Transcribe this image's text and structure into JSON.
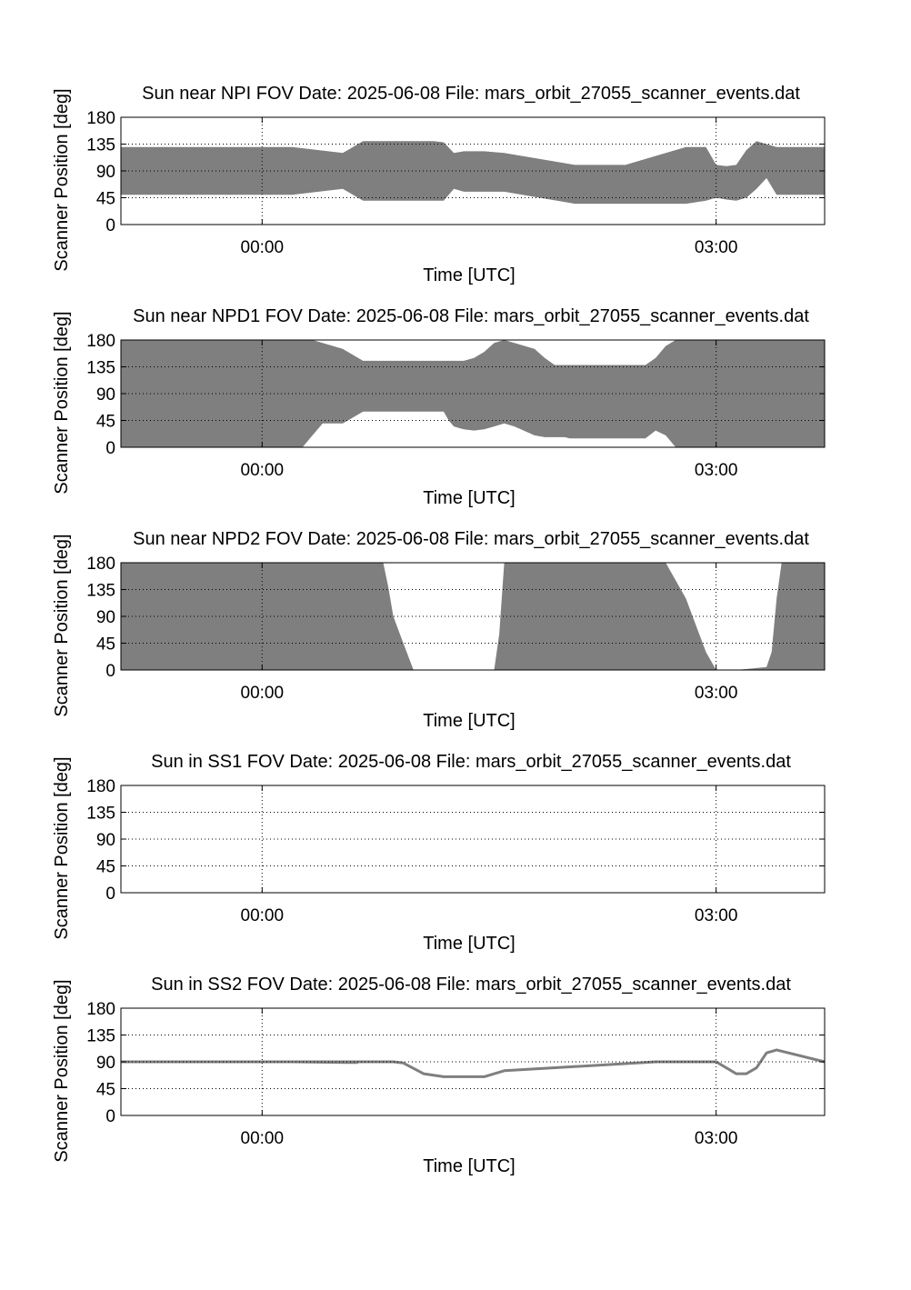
{
  "chart_data": [
    {
      "type": "area",
      "title": "Sun near NPI FOV   Date: 2025-06-08   File: mars_orbit_27055_scanner_events.dat",
      "xlabel": "Time [UTC]",
      "ylabel": "Scanner Position [deg]",
      "xlim": [
        -0.933,
        3.717
      ],
      "ylim": [
        0,
        180
      ],
      "xticks": [
        0,
        3
      ],
      "xtick_labels": [
        "00:00",
        "03:00"
      ],
      "yticks": [
        0,
        45,
        90,
        135,
        180
      ],
      "ytick_labels": [
        "0",
        "45",
        "90",
        "135",
        "180"
      ],
      "grid": true,
      "fill_color": "#7f7f7f",
      "bands": [
        {
          "x": [
            -0.933,
            0.2,
            0.533,
            0.667,
            0.8,
            1,
            1.133,
            1.2,
            1.267,
            1.333,
            1.467,
            1.6,
            2.067,
            2.2,
            2.4,
            2.8,
            2.933,
            3,
            3.067,
            3.133,
            3.2,
            3.267,
            3.333,
            3.4,
            3.717
          ],
          "low": [
            50,
            50,
            60,
            40,
            40,
            40,
            40,
            40,
            60,
            55,
            55,
            55,
            35,
            35,
            35,
            35,
            40,
            45,
            42,
            40,
            45,
            60,
            78,
            50,
            50
          ],
          "high": [
            130,
            130,
            120,
            140,
            140,
            140,
            140,
            138,
            120,
            123,
            123,
            120,
            100,
            100,
            100,
            130,
            130,
            100,
            98,
            100,
            125,
            140,
            135,
            130,
            130
          ]
        }
      ]
    },
    {
      "type": "area",
      "title": "Sun near NPD1 FOV   Date: 2025-06-08   File: mars_orbit_27055_scanner_events.dat",
      "xlabel": "Time [UTC]",
      "ylabel": "Scanner Position [deg]",
      "xlim": [
        -0.933,
        3.717
      ],
      "ylim": [
        0,
        180
      ],
      "xticks": [
        0,
        3
      ],
      "xtick_labels": [
        "00:00",
        "03:00"
      ],
      "yticks": [
        0,
        45,
        90,
        135,
        180
      ],
      "ytick_labels": [
        "0",
        "45",
        "90",
        "135",
        "180"
      ],
      "grid": true,
      "fill_color": "#7f7f7f",
      "bands": [
        {
          "x": [
            -0.933,
            0.033,
            0.1,
            0.133,
            0.2,
            0.267,
            0.333,
            0.4,
            0.533,
            0.667,
            0.8,
            1,
            1.133,
            1.2,
            1.233,
            1.267,
            1.333,
            1.4,
            1.467,
            1.533,
            1.6,
            1.667,
            1.8,
            1.867,
            1.933,
            2,
            2.033,
            2.067,
            2.133,
            2.2,
            2.267,
            2.333,
            2.4,
            2.533,
            2.6,
            2.667,
            2.733,
            2.8,
            2.867,
            2.933,
            3,
            3.067,
            3.1,
            3.133,
            3.2,
            3.267,
            3.333,
            3.4,
            3.467,
            3.533,
            3.6,
            3.717
          ],
          "low": [
            0,
            0,
            0,
            0,
            0,
            0,
            20,
            40,
            40,
            60,
            60,
            60,
            60,
            60,
            45,
            35,
            30,
            28,
            30,
            35,
            40,
            35,
            20,
            17,
            17,
            17,
            15,
            15,
            15,
            15,
            15,
            15,
            15,
            15,
            28,
            20,
            0,
            0,
            0,
            0,
            0,
            0,
            0,
            0,
            0,
            0,
            0,
            0,
            0,
            0,
            0,
            0
          ],
          "high": [
            180,
            180,
            180,
            180,
            180,
            180,
            180,
            175,
            165,
            145,
            145,
            145,
            145,
            145,
            145,
            145,
            145,
            150,
            160,
            175,
            180,
            175,
            165,
            150,
            138,
            138,
            138,
            138,
            138,
            138,
            138,
            138,
            138,
            138,
            150,
            170,
            180,
            180,
            180,
            180,
            180,
            180,
            180,
            180,
            180,
            180,
            180,
            180,
            180,
            180,
            180,
            180
          ]
        }
      ]
    },
    {
      "type": "area",
      "title": "Sun near NPD2 FOV   Date: 2025-06-08   File: mars_orbit_27055_scanner_events.dat",
      "xlabel": "Time [UTC]",
      "ylabel": "Scanner Position [deg]",
      "xlim": [
        -0.933,
        3.717
      ],
      "ylim": [
        0,
        180
      ],
      "xticks": [
        0,
        3
      ],
      "xtick_labels": [
        "00:00",
        "03:00"
      ],
      "yticks": [
        0,
        45,
        90,
        135,
        180
      ],
      "ytick_labels": [
        "0",
        "45",
        "90",
        "135",
        "180"
      ],
      "grid": true,
      "fill_color": "#7f7f7f",
      "bands": [
        {
          "x": [
            -0.933,
            0.8,
            0.833,
            0.867,
            0.933,
            1,
            1.067,
            1.1,
            1.133,
            1.2,
            1.233
          ],
          "low": [
            0,
            0,
            0,
            0,
            0,
            0,
            0,
            0,
            0,
            0,
            0
          ],
          "high": [
            180,
            180,
            140,
            90,
            45,
            0,
            0,
            0,
            0,
            0,
            0
          ]
        },
        {
          "x": [
            0.5,
            0.533,
            0.6,
            0.667,
            0.733,
            0.767
          ],
          "low": [
            0,
            0,
            0,
            0,
            0,
            0
          ],
          "high": [
            0,
            115,
            110,
            75,
            20,
            0
          ]
        },
        {
          "x": [
            1.533,
            1.567,
            1.6,
            1.667,
            2.667,
            2.8,
            2.933,
            3
          ],
          "low": [
            0,
            0,
            0,
            0,
            0,
            0,
            0,
            0
          ],
          "high": [
            0,
            60,
            180,
            180,
            180,
            120,
            30,
            0
          ]
        },
        {
          "x": [
            3.133,
            3.333,
            3.367,
            3.4,
            3.433,
            3.717
          ],
          "low": [
            0,
            0,
            0,
            0,
            0,
            0
          ],
          "high": [
            0,
            5,
            30,
            120,
            180,
            180
          ]
        }
      ]
    },
    {
      "type": "area",
      "title": "Sun in SS1 FOV   Date: 2025-06-08   File: mars_orbit_27055_scanner_events.dat",
      "xlabel": "Time [UTC]",
      "ylabel": "Scanner Position [deg]",
      "xlim": [
        -0.933,
        3.717
      ],
      "ylim": [
        0,
        180
      ],
      "xticks": [
        0,
        3
      ],
      "xtick_labels": [
        "00:00",
        "03:00"
      ],
      "yticks": [
        0,
        45,
        90,
        135,
        180
      ],
      "ytick_labels": [
        "0",
        "45",
        "90",
        "135",
        "180"
      ],
      "grid": true,
      "fill_color": "#7f7f7f",
      "bands": []
    },
    {
      "type": "line",
      "title": "Sun in SS2 FOV   Date: 2025-06-08   File: mars_orbit_27055_scanner_events.dat",
      "xlabel": "Time [UTC]",
      "ylabel": "Scanner Position [deg]",
      "xlim": [
        -0.933,
        3.717
      ],
      "ylim": [
        0,
        180
      ],
      "xticks": [
        0,
        3
      ],
      "xtick_labels": [
        "00:00",
        "03:00"
      ],
      "yticks": [
        0,
        45,
        90,
        135,
        180
      ],
      "ytick_labels": [
        "0",
        "45",
        "90",
        "135",
        "180"
      ],
      "grid": true,
      "line_color": "#7f7f7f",
      "segments": [
        {
          "x": [
            -0.933,
            0.2,
            0.567,
            0.633
          ],
          "y": [
            90,
            90,
            89,
            89
          ]
        },
        {
          "x": [
            0.133,
            0.333,
            0.667,
            0.733,
            0.867,
            0.933,
            1.067,
            1.2,
            1.4,
            1.467,
            1.6,
            2.6,
            2.733,
            2.8,
            2.933,
            3,
            3.1,
            3.133,
            3.2,
            3.267,
            3.333,
            3.4,
            3.717
          ],
          "y": [
            90,
            90,
            90,
            90,
            90,
            88,
            70,
            65,
            65,
            65,
            75,
            90,
            90,
            90,
            90,
            90,
            75,
            70,
            70,
            80,
            105,
            110,
            90
          ]
        }
      ]
    }
  ]
}
